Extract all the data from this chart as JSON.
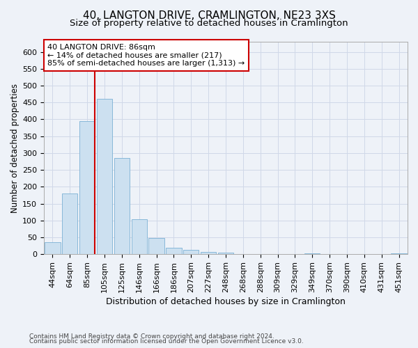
{
  "title": "40, LANGTON DRIVE, CRAMLINGTON, NE23 3XS",
  "subtitle": "Size of property relative to detached houses in Cramlington",
  "xlabel": "Distribution of detached houses by size in Cramlington",
  "ylabel": "Number of detached properties",
  "footer1": "Contains HM Land Registry data © Crown copyright and database right 2024.",
  "footer2": "Contains public sector information licensed under the Open Government Licence v3.0.",
  "bar_labels": [
    "44sqm",
    "64sqm",
    "85sqm",
    "105sqm",
    "125sqm",
    "146sqm",
    "166sqm",
    "186sqm",
    "207sqm",
    "227sqm",
    "248sqm",
    "268sqm",
    "288sqm",
    "309sqm",
    "329sqm",
    "349sqm",
    "370sqm",
    "390sqm",
    "410sqm",
    "431sqm",
    "451sqm"
  ],
  "bar_values": [
    35,
    180,
    395,
    460,
    285,
    103,
    48,
    18,
    13,
    7,
    5,
    1,
    0,
    0,
    0,
    3,
    0,
    0,
    0,
    0,
    3
  ],
  "bar_color": "#cce0f0",
  "bar_edge_color": "#7ab0d4",
  "grid_color": "#d0d8e8",
  "bg_color": "#eef2f8",
  "vline_color": "#cc0000",
  "annotation_line1": "40 LANGTON DRIVE: 86sqm",
  "annotation_line2": "← 14% of detached houses are smaller (217)",
  "annotation_line3": "85% of semi-detached houses are larger (1,313) →",
  "annotation_box_color": "#ffffff",
  "annotation_box_edge": "#cc0000",
  "ylim": [
    0,
    630
  ],
  "yticks": [
    0,
    50,
    100,
    150,
    200,
    250,
    300,
    350,
    400,
    450,
    500,
    550,
    600
  ],
  "title_fontsize": 11,
  "subtitle_fontsize": 9.5,
  "ylabel_fontsize": 8.5,
  "xlabel_fontsize": 9,
  "tick_fontsize": 8,
  "annotation_fontsize": 8,
  "footer_fontsize": 6.5
}
